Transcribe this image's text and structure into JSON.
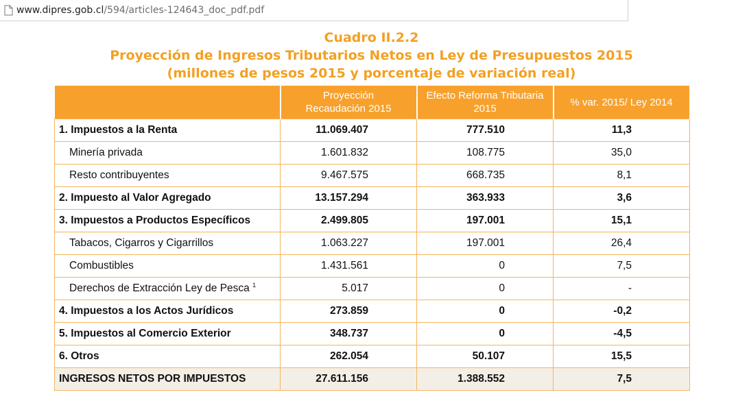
{
  "browser": {
    "url_host": "www.dipres.gob.cl",
    "url_path": "/594/articles-124643_doc_pdf.pdf"
  },
  "titles": {
    "line1": "Cuadro II.2.2",
    "line2": "Proyección de Ingresos Tributarios Netos en Ley de Presupuestos 2015",
    "line3": "(millones de pesos 2015 y porcentaje de variación real)"
  },
  "table": {
    "headers": {
      "col1_l1": "Proyección",
      "col1_l2": "Recaudación 2015",
      "col2_l1": "Efecto Reforma Tributaria",
      "col2_l2": "2015",
      "col3": "% var. 2015/ Ley 2014"
    },
    "rows": [
      {
        "label": "1. Impuestos a la Renta",
        "proj": "11.069.407",
        "efecto": "777.510",
        "var": "11,3"
      },
      {
        "label": "Minería privada",
        "proj": "1.601.832",
        "efecto": "108.775",
        "var": "35,0"
      },
      {
        "label": "Resto contribuyentes",
        "proj": "9.467.575",
        "efecto": "668.735",
        "var": "8,1"
      },
      {
        "label": "2. Impuesto al Valor Agregado",
        "proj": "13.157.294",
        "efecto": "363.933",
        "var": "3,6"
      },
      {
        "label": "3. Impuestos a Productos Específicos",
        "proj": "2.499.805",
        "efecto": "197.001",
        "var": "15,1"
      },
      {
        "label": "Tabacos, Cigarros y Cigarrillos",
        "proj": "1.063.227",
        "efecto": "197.001",
        "var": "26,4"
      },
      {
        "label": "Combustibles",
        "proj": "1.431.561",
        "efecto": "0",
        "var": "7,5"
      },
      {
        "label": "Derechos de Extracción Ley de Pesca",
        "footnote": "1",
        "proj": "5.017",
        "efecto": "0",
        "var": "-"
      },
      {
        "label": "4. Impuestos a los Actos Jurídicos",
        "proj": "273.859",
        "efecto": "0",
        "var": "-0,2"
      },
      {
        "label": "5. Impuestos al Comercio Exterior",
        "proj": "348.737",
        "efecto": "0",
        "var": "-4,5"
      },
      {
        "label": "6. Otros",
        "proj": "262.054",
        "efecto": "50.107",
        "var": "15,5"
      },
      {
        "label": "INGRESOS NETOS POR IMPUESTOS",
        "proj": "27.611.156",
        "efecto": "1.388.552",
        "var": "7,5"
      }
    ]
  },
  "colors": {
    "accent": "#f3a023",
    "header_bg": "#f7a12c",
    "total_bg": "#f3efe6"
  }
}
